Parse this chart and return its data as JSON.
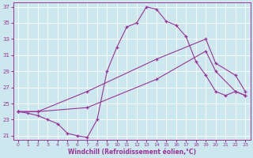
{
  "xlabel": "Windchill (Refroidissement éolien,°C)",
  "background_color": "#cce8ee",
  "line_color": "#993399",
  "xlim": [
    -0.5,
    23.5
  ],
  "ylim": [
    20.5,
    37.5
  ],
  "xticks": [
    0,
    1,
    2,
    3,
    4,
    5,
    6,
    7,
    8,
    9,
    10,
    11,
    12,
    13,
    14,
    15,
    16,
    17,
    18,
    19,
    20,
    21,
    22,
    23
  ],
  "yticks": [
    21,
    23,
    25,
    27,
    29,
    31,
    33,
    35,
    37
  ],
  "line1_x": [
    0,
    1,
    2,
    3,
    4,
    5,
    6,
    7,
    8,
    9,
    10,
    11,
    12,
    13,
    14,
    15,
    16,
    17,
    18,
    19,
    20,
    21,
    22,
    23
  ],
  "line1_y": [
    24.0,
    23.8,
    23.5,
    23.0,
    22.5,
    21.3,
    21.0,
    20.8,
    23.0,
    29.0,
    32.0,
    34.5,
    35.0,
    37.0,
    36.7,
    35.2,
    34.7,
    33.3,
    30.2,
    28.5,
    26.5,
    26.0,
    26.5,
    26.0
  ],
  "line2_x": [
    0,
    2,
    7,
    14,
    19,
    20,
    22,
    23
  ],
  "line2_y": [
    24.0,
    24.0,
    26.5,
    30.5,
    33.0,
    30.0,
    28.5,
    26.5
  ],
  "line3_x": [
    0,
    2,
    7,
    14,
    19,
    20,
    22,
    23
  ],
  "line3_y": [
    24.0,
    24.0,
    24.5,
    28.0,
    31.5,
    29.0,
    26.5,
    26.0
  ]
}
